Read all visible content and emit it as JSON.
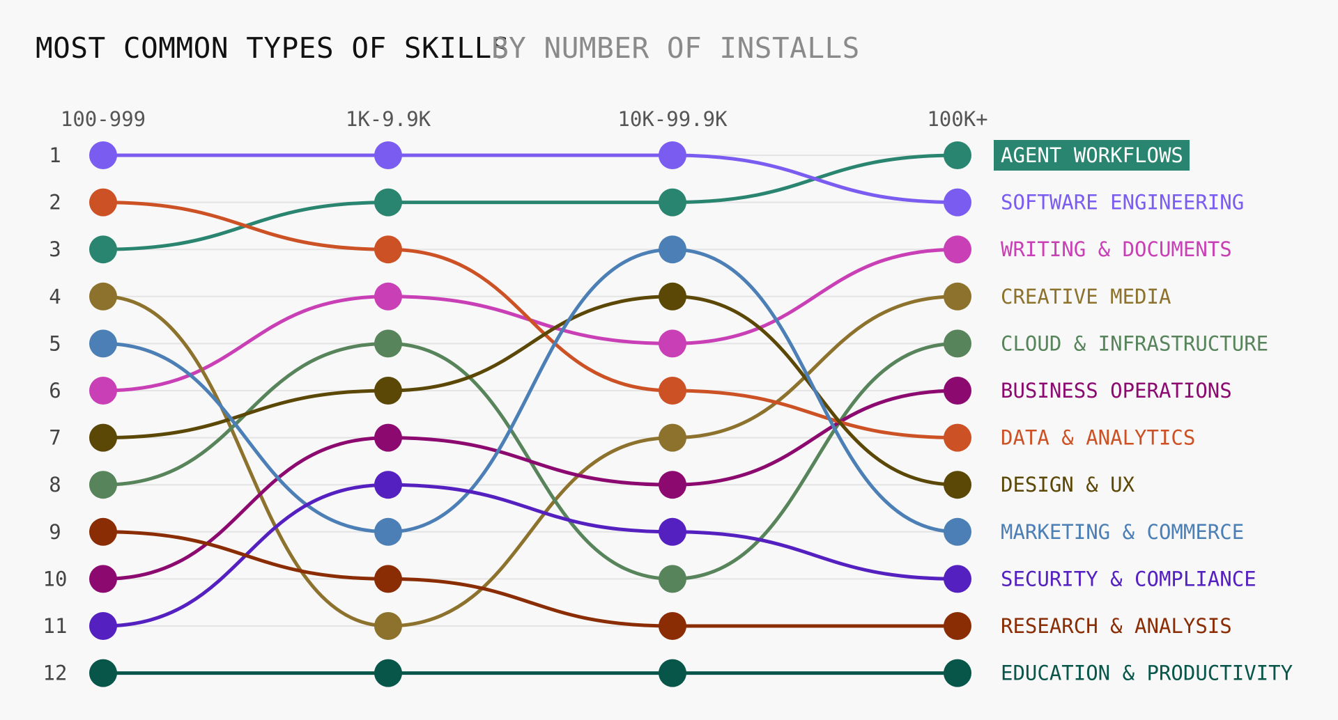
{
  "chart_data": {
    "type": "bump",
    "title": "MOST COMMON TYPES OF SKILLS",
    "subtitle": "BY NUMBER OF INSTALLS",
    "categories": [
      "100-999",
      "1K-9.9K",
      "10K-99.9K",
      "100K+"
    ],
    "ranks": [
      "1",
      "2",
      "3",
      "4",
      "5",
      "6",
      "7",
      "8",
      "9",
      "10",
      "11",
      "12"
    ],
    "highlighted": "AGENT WORKFLOWS",
    "grid": true,
    "series": [
      {
        "name": "AGENT WORKFLOWS",
        "color": "#2a8570",
        "ranks": [
          3,
          2,
          2,
          1
        ]
      },
      {
        "name": "SOFTWARE ENGINEERING",
        "color": "#7b5cf0",
        "ranks": [
          1,
          1,
          1,
          2
        ]
      },
      {
        "name": "WRITING & DOCUMENTS",
        "color": "#c93fb5",
        "ranks": [
          6,
          4,
          5,
          3
        ]
      },
      {
        "name": "CREATIVE MEDIA",
        "color": "#8c722c",
        "ranks": [
          4,
          11,
          7,
          4
        ]
      },
      {
        "name": "CLOUD & INFRASTRUCTURE",
        "color": "#57845a",
        "ranks": [
          8,
          5,
          10,
          5
        ]
      },
      {
        "name": "BUSINESS OPERATIONS",
        "color": "#8c0a70",
        "ranks": [
          10,
          7,
          8,
          6
        ]
      },
      {
        "name": "DATA & ANALYTICS",
        "color": "#cc5226",
        "ranks": [
          2,
          3,
          6,
          7
        ]
      },
      {
        "name": "DESIGN & UX",
        "color": "#5b4706",
        "ranks": [
          7,
          6,
          4,
          8
        ]
      },
      {
        "name": "MARKETING & COMMERCE",
        "color": "#4b7fb5",
        "ranks": [
          5,
          9,
          3,
          9
        ]
      },
      {
        "name": "SECURITY & COMPLIANCE",
        "color": "#5520c0",
        "ranks": [
          11,
          8,
          9,
          10
        ]
      },
      {
        "name": "RESEARCH & ANALYSIS",
        "color": "#8a2c04",
        "ranks": [
          9,
          10,
          11,
          11
        ]
      },
      {
        "name": "EDUCATION & PRODUCTIVITY",
        "color": "#08554a",
        "ranks": [
          12,
          12,
          12,
          12
        ]
      }
    ]
  }
}
